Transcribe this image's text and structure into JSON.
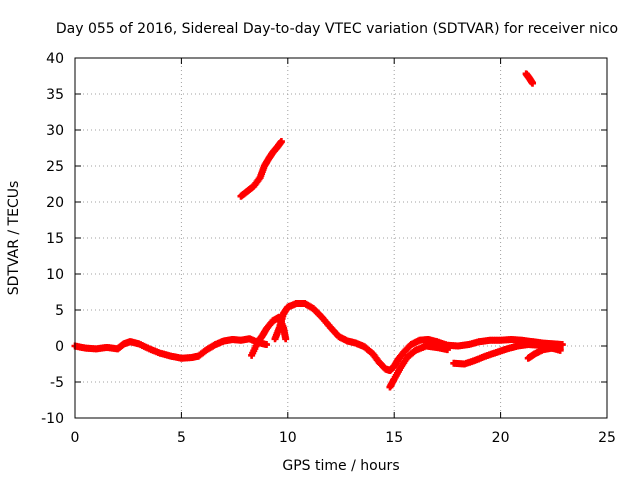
{
  "chart_data": {
    "type": "scatter",
    "title": "Day 055 of 2016, Sidereal Day-to-day VTEC variation (SDTVAR) for receiver nico",
    "xlabel": "GPS time / hours",
    "ylabel": "SDTVAR / TECUs",
    "xlim": [
      0,
      25
    ],
    "ylim": [
      -10,
      40
    ],
    "xticks": [
      0,
      5,
      10,
      15,
      20,
      25
    ],
    "yticks": [
      -10,
      -5,
      0,
      5,
      10,
      15,
      20,
      25,
      30,
      35,
      40
    ],
    "grid": true,
    "marker": "plus",
    "series": [
      {
        "name": "segment-main",
        "color": "#ff0000",
        "points": [
          [
            0.0,
            0.0
          ],
          [
            0.5,
            -0.3
          ],
          [
            1.0,
            -0.4
          ],
          [
            1.5,
            -0.2
          ],
          [
            2.0,
            -0.4
          ],
          [
            2.3,
            0.3
          ],
          [
            2.6,
            0.6
          ],
          [
            3.0,
            0.3
          ],
          [
            3.5,
            -0.4
          ],
          [
            4.0,
            -1.0
          ],
          [
            4.5,
            -1.4
          ],
          [
            5.0,
            -1.7
          ],
          [
            5.5,
            -1.6
          ],
          [
            5.8,
            -1.4
          ],
          [
            6.2,
            -0.5
          ],
          [
            6.6,
            0.2
          ],
          [
            7.0,
            0.7
          ],
          [
            7.4,
            0.9
          ],
          [
            7.8,
            0.8
          ],
          [
            8.2,
            1.0
          ],
          [
            8.6,
            0.5
          ],
          [
            9.0,
            0.2
          ]
        ]
      },
      {
        "name": "segment-loop",
        "color": "#ff0000",
        "points": [
          [
            8.3,
            -1.3
          ],
          [
            8.6,
            0.6
          ],
          [
            8.8,
            1.4
          ],
          [
            9.0,
            2.4
          ],
          [
            9.3,
            3.5
          ],
          [
            9.6,
            4.0
          ],
          [
            9.8,
            2.5
          ],
          [
            9.9,
            1.0
          ]
        ]
      },
      {
        "name": "segment-peak",
        "color": "#ff0000",
        "points": [
          [
            9.4,
            1.0
          ],
          [
            9.6,
            2.5
          ],
          [
            9.8,
            4.5
          ],
          [
            10.0,
            5.4
          ],
          [
            10.4,
            5.9
          ],
          [
            10.8,
            5.9
          ],
          [
            11.2,
            5.2
          ],
          [
            11.6,
            4.0
          ],
          [
            12.0,
            2.6
          ],
          [
            12.4,
            1.3
          ],
          [
            12.8,
            0.7
          ],
          [
            13.2,
            0.4
          ],
          [
            13.6,
            -0.1
          ],
          [
            14.0,
            -1.1
          ],
          [
            14.3,
            -2.3
          ],
          [
            14.6,
            -3.2
          ],
          [
            14.8,
            -3.4
          ],
          [
            15.0,
            -2.8
          ],
          [
            15.2,
            -1.8
          ],
          [
            15.5,
            -0.7
          ],
          [
            15.8,
            0.2
          ],
          [
            16.2,
            0.8
          ],
          [
            16.6,
            0.9
          ],
          [
            17.0,
            0.6
          ],
          [
            17.5,
            0.1
          ],
          [
            18.0,
            0.0
          ],
          [
            18.5,
            0.2
          ],
          [
            19.0,
            0.6
          ],
          [
            19.5,
            0.8
          ],
          [
            20.0,
            0.8
          ],
          [
            20.5,
            0.9
          ],
          [
            21.0,
            0.8
          ],
          [
            21.5,
            0.6
          ],
          [
            22.0,
            0.4
          ],
          [
            22.5,
            0.3
          ],
          [
            22.9,
            0.2
          ]
        ]
      },
      {
        "name": "segment-dip",
        "color": "#ff0000",
        "points": [
          [
            14.8,
            -5.7
          ],
          [
            15.0,
            -4.6
          ],
          [
            15.3,
            -3.0
          ],
          [
            15.6,
            -1.6
          ],
          [
            16.0,
            -0.6
          ],
          [
            16.5,
            0.0
          ],
          [
            17.0,
            -0.2
          ],
          [
            17.5,
            -0.5
          ]
        ]
      },
      {
        "name": "segment-late-lower",
        "color": "#ff0000",
        "points": [
          [
            17.8,
            -2.4
          ],
          [
            18.3,
            -2.5
          ],
          [
            18.8,
            -2.0
          ],
          [
            19.3,
            -1.4
          ],
          [
            19.8,
            -0.9
          ],
          [
            20.3,
            -0.4
          ],
          [
            20.8,
            0.0
          ],
          [
            21.3,
            0.2
          ],
          [
            21.8,
            0.1
          ],
          [
            22.3,
            -0.2
          ],
          [
            22.8,
            -0.6
          ]
        ]
      },
      {
        "name": "segment-late-upper",
        "color": "#ff0000",
        "points": [
          [
            21.3,
            -1.7
          ],
          [
            21.6,
            -1.1
          ],
          [
            22.0,
            -0.5
          ],
          [
            22.4,
            -0.3
          ],
          [
            22.8,
            -0.4
          ]
        ]
      },
      {
        "name": "segment-20-28",
        "color": "#ff0000",
        "points": [
          [
            7.8,
            20.8
          ],
          [
            8.1,
            21.5
          ],
          [
            8.4,
            22.2
          ],
          [
            8.7,
            23.4
          ],
          [
            8.9,
            25.0
          ],
          [
            9.1,
            26.0
          ],
          [
            9.3,
            26.9
          ],
          [
            9.5,
            27.6
          ],
          [
            9.7,
            28.4
          ]
        ]
      },
      {
        "name": "segment-36-38",
        "color": "#ff0000",
        "points": [
          [
            21.2,
            37.8
          ],
          [
            21.35,
            37.2
          ],
          [
            21.5,
            36.5
          ]
        ]
      }
    ]
  }
}
